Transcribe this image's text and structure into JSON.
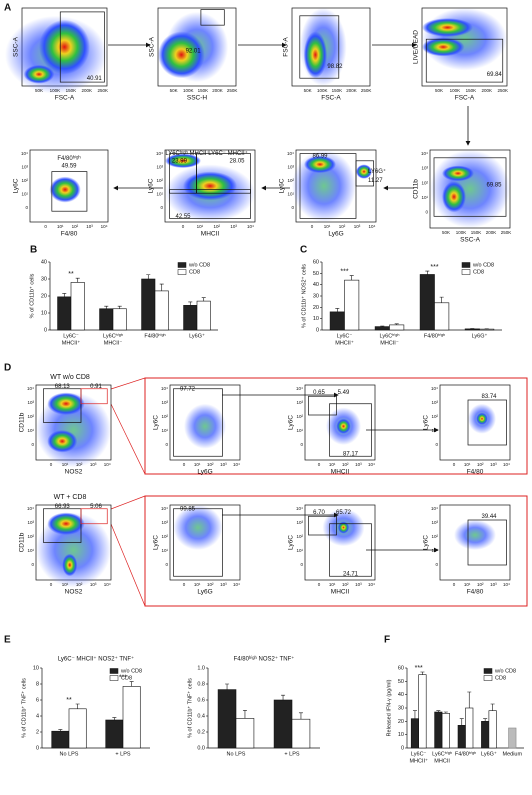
{
  "panel_labels": [
    "A",
    "B",
    "C",
    "D",
    "E",
    "F"
  ],
  "flow": {
    "scatter_ticks": [
      "50K",
      "100K",
      "150K",
      "200K",
      "250K"
    ],
    "log_ticks": [
      "0",
      "10¹",
      "10²",
      "10³",
      "10⁴"
    ],
    "A": [
      {
        "x_label": "FSC-A",
        "y_label": "SSC-A",
        "x_scale": "linear",
        "y_scale": "linear",
        "labels": [
          "40.91"
        ]
      },
      {
        "x_label": "SSC-H",
        "y_label": "SSC-A",
        "x_scale": "linear",
        "y_scale": "linear",
        "labels": [
          "92.01"
        ]
      },
      {
        "x_label": "FSC-A",
        "y_label": "FSC-A",
        "x_scale": "linear",
        "y_scale": "linear",
        "labels": [
          "98.82"
        ]
      },
      {
        "x_label": "FSC-A",
        "y_label": "LIVE/DEAD",
        "x_scale": "linear",
        "y_scale": "linear",
        "labels": [
          "69.84"
        ]
      },
      {
        "x_label": "F4/80",
        "y_label": "Ly6C",
        "x_scale": "log",
        "y_scale": "log",
        "labels": [
          "F4/80ʰⁱᵍʰ",
          "49.59"
        ]
      },
      {
        "x_label": "MHCII",
        "y_label": "Ly6C",
        "x_scale": "log",
        "y_scale": "log",
        "labels": [
          "LY6Cʰⁱᵍʰ MHCII⁻",
          "LY6C⁻ MHCII⁺",
          "23.99",
          "28.05",
          "42.55"
        ]
      },
      {
        "x_label": "Ly6G",
        "y_label": "Ly6C",
        "x_scale": "log",
        "y_scale": "log",
        "labels": [
          "86.99",
          "LY6G⁺",
          "11.27"
        ]
      },
      {
        "x_label": "SSC-A",
        "y_label": "CD11b",
        "x_scale": "linear",
        "y_scale": "log",
        "labels": [
          "69.85"
        ]
      }
    ],
    "D": {
      "titles": [
        "WT w/o CD8",
        "WT + CD8"
      ],
      "rows": [
        [
          {
            "x_label": "NOS2",
            "y_label": "CD11b",
            "x_scale": "log",
            "y_scale": "log",
            "labels": [
              "68.13",
              "0.91"
            ]
          },
          {
            "x_label": "Ly6G",
            "y_label": "Ly6C",
            "x_scale": "log",
            "y_scale": "log",
            "labels": [
              "97.72"
            ]
          },
          {
            "x_label": "MHCII",
            "y_label": "Ly6C",
            "x_scale": "log",
            "y_scale": "log",
            "labels": [
              "0.65",
              "5.49",
              "87.17"
            ]
          },
          {
            "x_label": "F4/80",
            "y_label": "Ly6C",
            "x_scale": "log",
            "y_scale": "log",
            "labels": [
              "83.74"
            ]
          }
        ],
        [
          {
            "x_label": "NOS2",
            "y_label": "CD11b",
            "x_scale": "log",
            "y_scale": "log",
            "labels": [
              "66.93",
              "5.06"
            ]
          },
          {
            "x_label": "Ly6G",
            "y_label": "Ly6C",
            "x_scale": "log",
            "y_scale": "log",
            "labels": [
              "99.85"
            ]
          },
          {
            "x_label": "MHCII",
            "y_label": "Ly6C",
            "x_scale": "log",
            "y_scale": "log",
            "labels": [
              "6.70",
              "65.72",
              "24.71"
            ]
          },
          {
            "x_label": "F4/80",
            "y_label": "Ly6C",
            "x_scale": "log",
            "y_scale": "log",
            "labels": [
              "39.44"
            ]
          }
        ]
      ]
    }
  },
  "chart_data": [
    {
      "type": "bar",
      "y_label": "% of CD11b⁺ cells",
      "categories": [
        [
          "Ly6C⁻",
          "MHCII⁺"
        ],
        [
          "Ly6Cʰⁱᵍʰ",
          "MHCII⁻"
        ],
        [
          "F4/80ʰⁱᵍʰ"
        ],
        [
          "Ly6G⁺"
        ]
      ],
      "series": [
        {
          "name": "w/o CD8",
          "color": "#222222",
          "values": [
            19.5,
            12.5,
            30,
            14.5
          ],
          "errors": [
            2,
            1.5,
            2.5,
            2
          ]
        },
        {
          "name": "CD8",
          "color": "#ffffff",
          "values": [
            28,
            12.5,
            23,
            17
          ],
          "errors": [
            2.5,
            1.5,
            4,
            2
          ]
        }
      ],
      "ylim": [
        0,
        40
      ],
      "yticks": [
        0,
        10,
        20,
        30,
        40
      ],
      "legend": "upper right",
      "annotations": [
        {
          "text": "**",
          "category": 0
        }
      ]
    },
    {
      "type": "bar",
      "y_label": "% of CD11b⁺ NOS2⁺ cells",
      "categories": [
        [
          "Ly6C⁻",
          "MHCII⁺"
        ],
        [
          "Ly6Cʰⁱᵍʰ",
          "MHCII⁻"
        ],
        [
          "F4/80ʰⁱᵍʰ"
        ],
        [
          "Ly6G⁺"
        ]
      ],
      "series": [
        {
          "name": "w/o CD8",
          "color": "#222222",
          "values": [
            16,
            3,
            49,
            1
          ],
          "errors": [
            3,
            0.5,
            3,
            0.3
          ]
        },
        {
          "name": "CD8",
          "color": "#ffffff",
          "values": [
            44,
            4.5,
            24,
            0.8
          ],
          "errors": [
            4,
            1,
            5,
            0.3
          ]
        }
      ],
      "ylim": [
        0,
        60
      ],
      "yticks": [
        0,
        10,
        20,
        30,
        40,
        50,
        60
      ],
      "legend": "upper right",
      "annotations": [
        {
          "text": "***",
          "category": 0
        },
        {
          "text": "***",
          "category": 2
        }
      ]
    },
    {
      "type": "bar",
      "title": "Ly6C⁻ MHCII⁺ NOS2⁺ TNF⁺",
      "y_label": "% of CD11b⁺ TNF⁺ cells",
      "categories": [
        [
          "No LPS"
        ],
        [
          "+ LPS"
        ]
      ],
      "series": [
        {
          "name": "w/o CD8",
          "color": "#222222",
          "values": [
            2.1,
            3.5
          ],
          "errors": [
            0.2,
            0.3
          ]
        },
        {
          "name": "CD8",
          "color": "#ffffff",
          "values": [
            4.9,
            7.7
          ],
          "errors": [
            0.6,
            0.6
          ]
        }
      ],
      "ylim": [
        0,
        10
      ],
      "yticks": [
        0,
        2,
        4,
        6,
        8,
        10
      ],
      "legend": "upper right",
      "annotations": [
        {
          "text": "**",
          "category": 0
        },
        {
          "text": "***",
          "category": 1
        }
      ]
    },
    {
      "type": "bar",
      "title": "F4/80ʰⁱᵍʰ NOS2⁺ TNF⁺",
      "y_label": "% of CD11b⁺ TNF⁺ cells",
      "categories": [
        [
          "No LPS"
        ],
        [
          "+ LPS"
        ]
      ],
      "series": [
        {
          "name": "w/o CD8",
          "color": "#222222",
          "values": [
            0.73,
            0.6
          ],
          "errors": [
            0.07,
            0.06
          ]
        },
        {
          "name": "CD8",
          "color": "#ffffff",
          "values": [
            0.37,
            0.36
          ],
          "errors": [
            0.1,
            0.08
          ]
        }
      ],
      "ylim": [
        0,
        1
      ],
      "yticks": [
        {
          "value": 0,
          "label": "0.0"
        },
        0.2,
        0.4,
        0.6,
        0.8,
        {
          "value": 1,
          "label": "1.0"
        }
      ]
    },
    {
      "type": "bar",
      "y_label": "Released IFN-γ (pg/ml)",
      "categories": [
        [
          "Ly6C⁻",
          "MHCII⁺"
        ],
        [
          "Ly6Cʰⁱᵍʰ",
          "MHCII"
        ],
        [
          "F4/80ʰⁱᵍʰ"
        ],
        [
          "Ly6G⁺"
        ],
        [
          "Medium"
        ]
      ],
      "series": [
        {
          "name": "w/o CD8",
          "color": "#222222",
          "values": [
            22,
            27,
            17,
            20,
            null
          ],
          "errors": [
            6,
            1,
            5,
            2,
            null
          ]
        },
        {
          "name": "CD8",
          "color": "#ffffff",
          "values": [
            55,
            26,
            30,
            28,
            null
          ],
          "errors": [
            2,
            1,
            12,
            5,
            null
          ]
        }
      ],
      "medium_value": 15,
      "medium_color": "#bbbbbb",
      "ylim": [
        0,
        60
      ],
      "yticks": [
        0,
        10,
        20,
        30,
        40,
        50,
        60
      ],
      "legend": "upper right",
      "annotations": [
        {
          "text": "***",
          "category": 0
        }
      ]
    }
  ]
}
